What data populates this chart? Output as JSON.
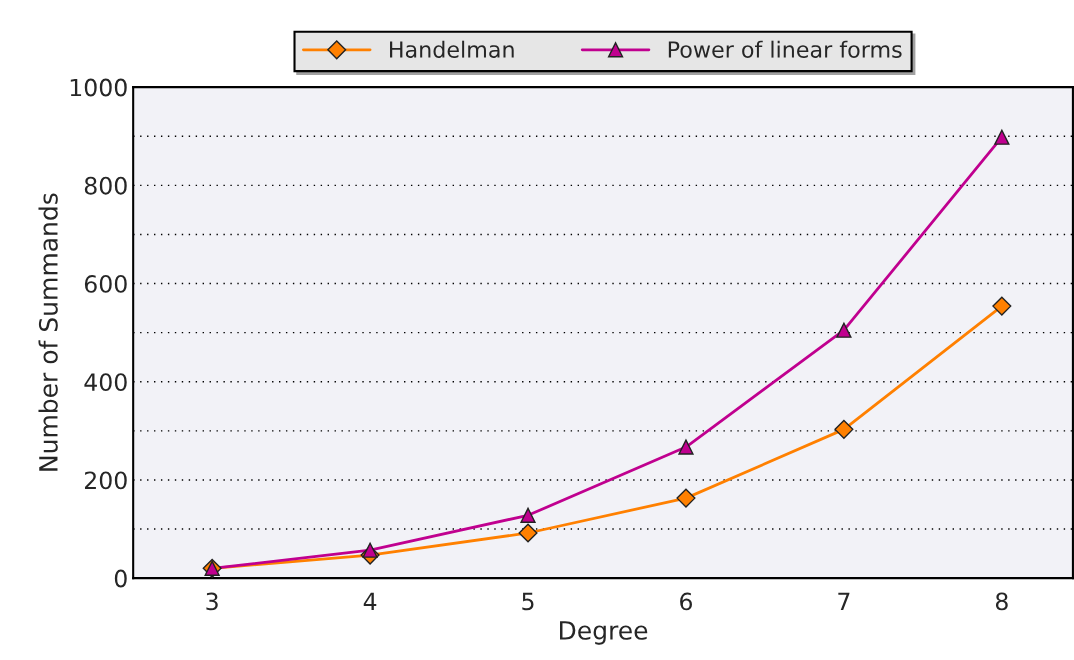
{
  "chart_data": {
    "type": "line",
    "xlabel": "Degree",
    "ylabel": "Number of Summands",
    "x": [
      3,
      4,
      5,
      6,
      7,
      8
    ],
    "series": [
      {
        "name": "Handelman",
        "color": "#ff8000",
        "marker": "diamond",
        "values": [
          20,
          47,
          92,
          163,
          303,
          554
        ]
      },
      {
        "name": "Power of linear forms",
        "color": "#c0008f",
        "marker": "triangle",
        "values": [
          20,
          57,
          128,
          267,
          505,
          898
        ]
      }
    ],
    "xlim": [
      2.5,
      8.45
    ],
    "xticks": [
      3,
      4,
      5,
      6,
      7,
      8
    ],
    "ylim": [
      0,
      1000
    ],
    "yticks": [
      0,
      {
        "value": 100,
        "label": null
      },
      200,
      {
        "value": 300,
        "label": null
      },
      400,
      {
        "value": 500,
        "label": null
      },
      600,
      {
        "value": 700,
        "label": null
      },
      800,
      {
        "value": 900,
        "label": null
      },
      1000
    ],
    "grid": "y",
    "legend": "top",
    "line_style": "solid"
  }
}
